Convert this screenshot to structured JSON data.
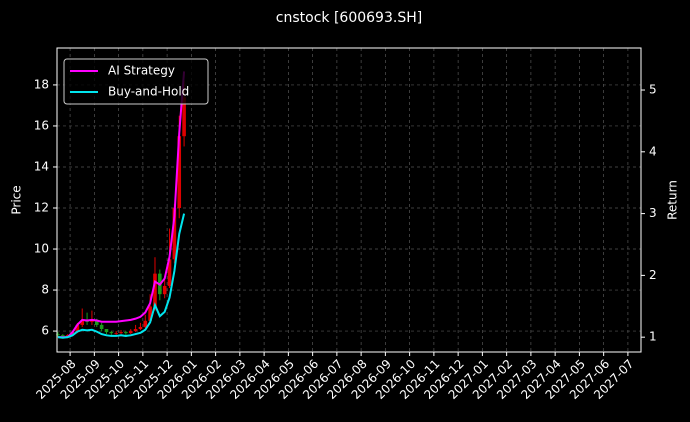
{
  "chart_data": {
    "type": "candlestick",
    "title": "cnstock [600693.SH]",
    "y_label": "Price",
    "y2_label": "Return",
    "x": [
      -0.5,
      -0.3,
      -0.1,
      0.1,
      0.3,
      0.5,
      0.7,
      0.9,
      1.1,
      1.3,
      1.5,
      1.7,
      1.9,
      2.1,
      2.3,
      2.5,
      2.7,
      2.9,
      3.1,
      3.3,
      3.5,
      3.7,
      3.9,
      4.1,
      4.3,
      4.5,
      4.7
    ],
    "open": [
      5.85,
      5.8,
      5.75,
      5.8,
      5.95,
      6.3,
      6.5,
      6.45,
      6.5,
      6.3,
      6.1,
      5.95,
      5.9,
      5.9,
      5.95,
      5.9,
      6.0,
      6.1,
      6.2,
      6.5,
      7.2,
      8.8,
      7.8,
      8.2,
      9.5,
      12.0,
      15.5
    ],
    "high": [
      5.95,
      5.85,
      5.85,
      6.0,
      6.4,
      7.1,
      6.9,
      7.0,
      6.6,
      6.4,
      6.1,
      6.0,
      6.0,
      6.05,
      6.0,
      6.1,
      6.3,
      6.4,
      6.8,
      7.8,
      9.6,
      9.0,
      8.6,
      11.0,
      12.2,
      16.5,
      18.2
    ],
    "low": [
      5.7,
      5.65,
      5.7,
      5.75,
      5.9,
      6.2,
      6.3,
      6.3,
      6.2,
      6.0,
      5.85,
      5.8,
      5.8,
      5.85,
      5.8,
      5.85,
      5.95,
      6.05,
      6.15,
      6.4,
      7.0,
      7.5,
      7.6,
      8.1,
      9.3,
      11.5,
      15.0
    ],
    "close": [
      5.8,
      5.75,
      5.8,
      5.95,
      6.3,
      6.5,
      6.45,
      6.5,
      6.3,
      6.1,
      5.95,
      5.9,
      5.9,
      5.95,
      5.9,
      6.0,
      6.1,
      6.2,
      6.5,
      7.2,
      8.8,
      7.8,
      8.2,
      9.5,
      12.0,
      15.5,
      17.4
    ],
    "up_color": "#e00000",
    "down_color": "#1a9c1a",
    "series": [
      {
        "name": "AI Strategy",
        "color": "#ff00ff",
        "axis": "y2",
        "values": [
          1.0,
          1.0,
          1.0,
          1.08,
          1.2,
          1.28,
          1.27,
          1.28,
          1.27,
          1.25,
          1.25,
          1.25,
          1.25,
          1.26,
          1.27,
          1.28,
          1.3,
          1.33,
          1.4,
          1.55,
          1.9,
          1.85,
          1.95,
          2.3,
          2.95,
          4.3,
          5.3
        ]
      },
      {
        "name": "Buy-and-Hold",
        "color": "#00e5ee",
        "axis": "y2",
        "values": [
          1.0,
          0.99,
          1.0,
          1.03,
          1.09,
          1.12,
          1.11,
          1.12,
          1.09,
          1.05,
          1.03,
          1.02,
          1.02,
          1.03,
          1.02,
          1.03,
          1.05,
          1.07,
          1.12,
          1.24,
          1.52,
          1.34,
          1.41,
          1.64,
          2.07,
          2.67,
          3.0
        ]
      }
    ],
    "xlim": [
      -0.54,
      23.54
    ],
    "xticks": [
      {
        "value": 0,
        "label": "2025-08"
      },
      {
        "value": 1,
        "label": "2025-09"
      },
      {
        "value": 2,
        "label": "2025-10"
      },
      {
        "value": 3,
        "label": "2025-11"
      },
      {
        "value": 4,
        "label": "2025-12"
      },
      {
        "value": 5,
        "label": "2026-01"
      },
      {
        "value": 6,
        "label": "2026-02"
      },
      {
        "value": 7,
        "label": "2026-03"
      },
      {
        "value": 8,
        "label": "2026-04"
      },
      {
        "value": 9,
        "label": "2026-05"
      },
      {
        "value": 10,
        "label": "2026-06"
      },
      {
        "value": 11,
        "label": "2026-07"
      },
      {
        "value": 12,
        "label": "2026-08"
      },
      {
        "value": 13,
        "label": "2026-09"
      },
      {
        "value": 14,
        "label": "2026-10"
      },
      {
        "value": 15,
        "label": "2026-11"
      },
      {
        "value": 16,
        "label": "2026-12"
      },
      {
        "value": 17,
        "label": "2027-01"
      },
      {
        "value": 18,
        "label": "2027-02"
      },
      {
        "value": 19,
        "label": "2027-03"
      },
      {
        "value": 20,
        "label": "2027-04"
      },
      {
        "value": 21,
        "label": "2027-05"
      },
      {
        "value": 22,
        "label": "2027-06"
      },
      {
        "value": 23,
        "label": "2027-07"
      }
    ],
    "ylim": [
      4.98,
      19.8
    ],
    "yticks": [
      6,
      8,
      10,
      12,
      14,
      16,
      18
    ],
    "y2lim": [
      0.76,
      5.68
    ],
    "y2ticks": [
      1,
      2,
      3,
      4,
      5
    ],
    "grid": true,
    "legend": "upper left"
  }
}
